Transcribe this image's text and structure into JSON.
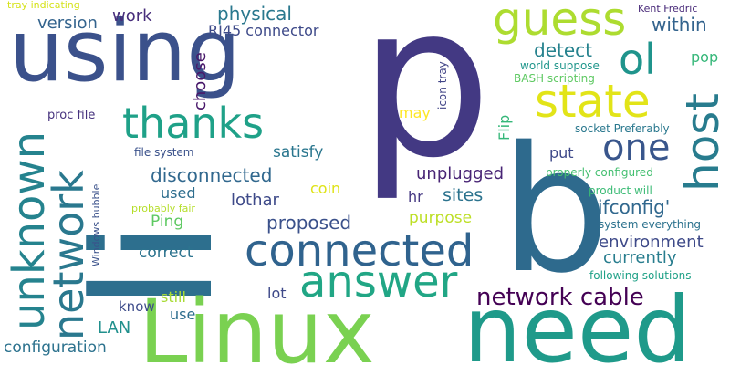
{
  "words": [
    {
      "text": "p",
      "color": "#433983"
    },
    {
      "text": "li",
      "color": "#2d6f8e"
    },
    {
      "text": "b",
      "color": "#2e6a8d"
    },
    {
      "text": "Linux",
      "color": "#7ad151"
    },
    {
      "text": "need",
      "color": "#1f9a8a"
    },
    {
      "text": "using",
      "color": "#3b518b"
    },
    {
      "text": "connected",
      "color": "#30638e"
    },
    {
      "text": "answer",
      "color": "#21a685"
    },
    {
      "text": "unknown",
      "color": "#25838e"
    },
    {
      "text": "network",
      "color": "#2a788e"
    },
    {
      "text": "thanks",
      "color": "#1fa188"
    },
    {
      "text": "guess",
      "color": "#addc30"
    },
    {
      "text": "state",
      "color": "#e2e418"
    },
    {
      "text": "one",
      "color": "#39568c"
    },
    {
      "text": "host",
      "color": "#287c8e"
    },
    {
      "text": "ol",
      "color": "#1f948c"
    },
    {
      "text": "network cable",
      "color": "#440154"
    },
    {
      "text": "physical",
      "color": "#2a788e"
    },
    {
      "text": "RJ45 connector",
      "color": "#3e4a89"
    },
    {
      "text": "version",
      "color": "#33638d"
    },
    {
      "text": "work",
      "color": "#472d7b"
    },
    {
      "text": "choose",
      "color": "#48186a"
    },
    {
      "text": "within",
      "color": "#33638d"
    },
    {
      "text": "detect",
      "color": "#26828e"
    },
    {
      "text": "pop",
      "color": "#35b779"
    },
    {
      "text": "world suppose",
      "color": "#1f968b"
    },
    {
      "text": "BASH scripting",
      "color": "#5ec962"
    },
    {
      "text": "icon tray",
      "color": "#414487"
    },
    {
      "text": "Kent Fredric",
      "color": "#472878"
    },
    {
      "text": "tray indicating",
      "color": "#d5e21a"
    },
    {
      "text": "proc file",
      "color": "#46327e"
    },
    {
      "text": "may",
      "color": "#fde725"
    },
    {
      "text": "Flip",
      "color": "#35b779"
    },
    {
      "text": "socket Preferably",
      "color": "#2a788e"
    },
    {
      "text": "file system",
      "color": "#3b528b"
    },
    {
      "text": "satisfy",
      "color": "#2a768e"
    },
    {
      "text": "put",
      "color": "#3e4989"
    },
    {
      "text": "disconnected",
      "color": "#31688e"
    },
    {
      "text": "unplugged",
      "color": "#482475"
    },
    {
      "text": "properly configured",
      "color": "#44bf70"
    },
    {
      "text": "coin",
      "color": "#dfe318"
    },
    {
      "text": "sites",
      "color": "#2c738e"
    },
    {
      "text": "used",
      "color": "#2e6e8e"
    },
    {
      "text": "product will",
      "color": "#3bbb75"
    },
    {
      "text": "ifconfig'",
      "color": "#31688e"
    },
    {
      "text": "Windows bubble",
      "color": "#3b528b"
    },
    {
      "text": "probably fair",
      "color": "#b5de2b"
    },
    {
      "text": "lothar",
      "color": "#3e4a89"
    },
    {
      "text": "hr",
      "color": "#453882"
    },
    {
      "text": "purpose",
      "color": "#bddf26"
    },
    {
      "text": "system everything",
      "color": "#2c728e"
    },
    {
      "text": "Ping",
      "color": "#5ec962"
    },
    {
      "text": "proposed",
      "color": "#3b518b"
    },
    {
      "text": "environment",
      "color": "#3e4a89"
    },
    {
      "text": "correct",
      "color": "#2c738e"
    },
    {
      "text": "currently",
      "color": "#287d8e"
    },
    {
      "text": "following solutions",
      "color": "#1fa187"
    },
    {
      "text": "know",
      "color": "#3e4c8a"
    },
    {
      "text": "still",
      "color": "#a8db34"
    },
    {
      "text": "lot",
      "color": "#3e4989"
    },
    {
      "text": "use",
      "color": "#2e6e8e"
    },
    {
      "text": "LAN",
      "color": "#21908d"
    },
    {
      "text": "configuration",
      "color": "#2c728e"
    }
  ]
}
